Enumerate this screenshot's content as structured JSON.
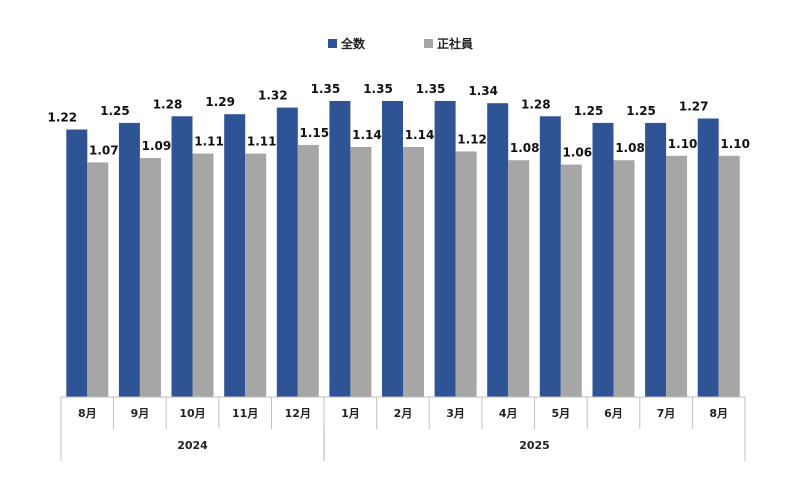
{
  "chart_data": {
    "type": "bar",
    "categories": [
      "8月",
      "9月",
      "10月",
      "11月",
      "12月",
      "1月",
      "2月",
      "3月",
      "4月",
      "5月",
      "6月",
      "7月",
      "8月"
    ],
    "year_groups": [
      {
        "label": "2024",
        "from": 0,
        "to": 4
      },
      {
        "label": "2025",
        "from": 5,
        "to": 12
      }
    ],
    "series": [
      {
        "name": "全数",
        "color": "#2f5496",
        "values": [
          1.22,
          1.25,
          1.28,
          1.29,
          1.32,
          1.35,
          1.35,
          1.35,
          1.34,
          1.28,
          1.25,
          1.25,
          1.27
        ],
        "labels": [
          "1.22",
          "1.25",
          "1.28",
          "1.29",
          "1.32",
          "1.35",
          "1.35",
          "1.35",
          "1.34",
          "1.28",
          "1.25",
          "1.25",
          "1.27"
        ]
      },
      {
        "name": "正社員",
        "color": "#a6a6a6",
        "values": [
          1.07,
          1.09,
          1.11,
          1.11,
          1.15,
          1.14,
          1.14,
          1.12,
          1.08,
          1.06,
          1.08,
          1.1,
          1.1
        ],
        "labels": [
          "1.07",
          "1.09",
          "1.11",
          "1.11",
          "1.15",
          "1.14",
          "1.14",
          "1.12",
          "1.08",
          "1.06",
          "1.08",
          "1.10",
          "1.10"
        ]
      }
    ],
    "ylim": [
      0,
      1.35
    ],
    "legend_position": "top-center",
    "grid": false
  }
}
